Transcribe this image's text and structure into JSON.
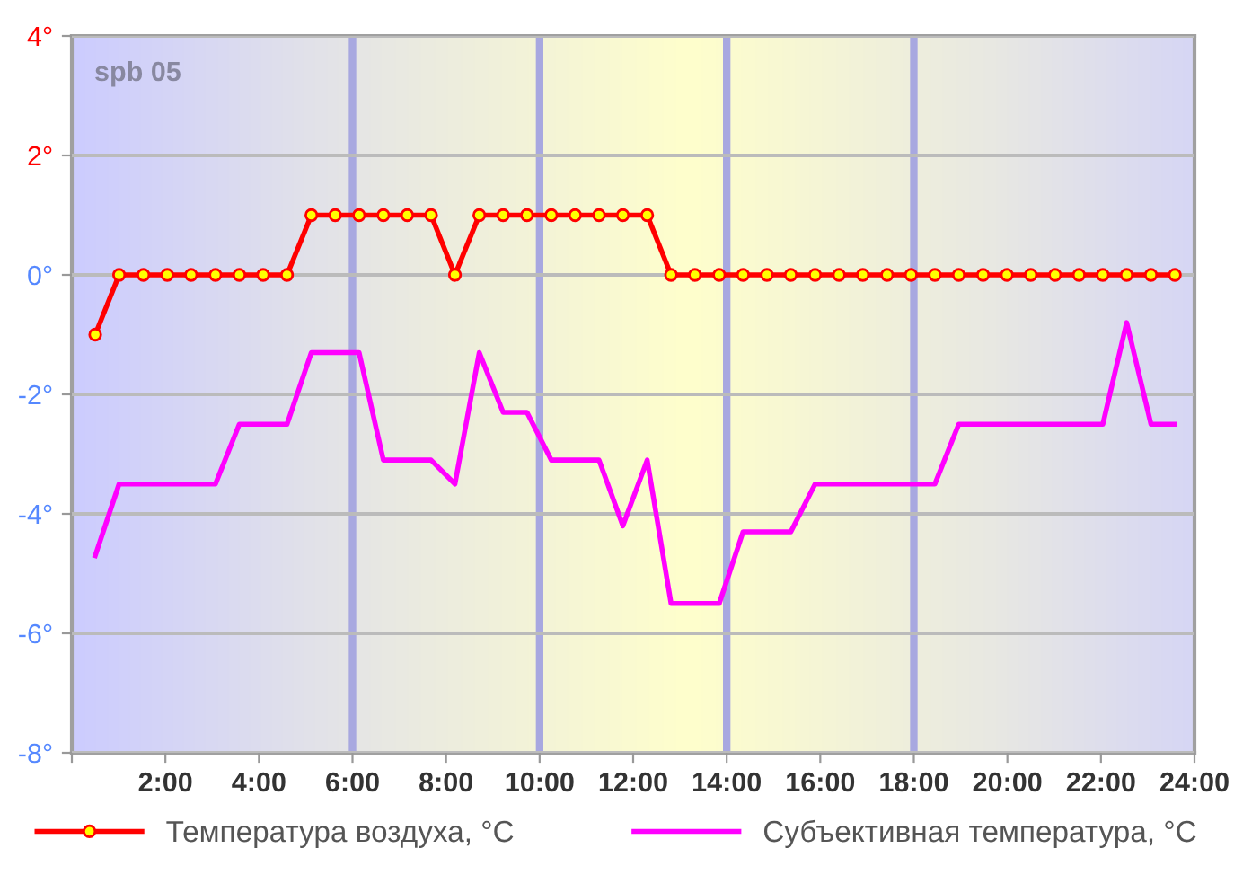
{
  "chart_data": {
    "type": "line",
    "annotations": [
      "spb 05"
    ],
    "x": [
      0.5,
      1.01,
      1.53,
      2.04,
      2.55,
      3.07,
      3.58,
      4.09,
      4.6,
      5.12,
      5.63,
      6.14,
      6.66,
      7.17,
      7.68,
      8.19,
      8.71,
      9.22,
      9.73,
      10.25,
      10.76,
      11.27,
      11.78,
      12.3,
      12.81,
      13.32,
      13.84,
      14.35,
      14.86,
      15.37,
      15.89,
      16.4,
      16.91,
      17.43,
      17.94,
      18.45,
      18.96,
      19.48,
      19.99,
      20.5,
      21.02,
      21.53,
      22.04,
      22.55,
      23.07,
      23.58
    ],
    "series": [
      {
        "name": "Температура воздуха, °C",
        "color": "#ff0000",
        "marker": "circle",
        "values": [
          -1,
          0,
          0,
          0,
          0,
          0,
          0,
          0,
          0,
          1,
          1,
          1,
          1,
          1,
          1,
          0,
          1,
          1,
          1,
          1,
          1,
          1,
          1,
          1,
          0,
          0,
          0,
          0,
          0,
          0,
          0,
          0,
          0,
          0,
          0,
          0,
          0,
          0,
          0,
          0,
          0,
          0,
          0,
          0,
          0,
          0
        ]
      },
      {
        "name": "Субъективная температура, °C",
        "color": "#ff00ff",
        "values": [
          -4.7,
          -3.5,
          -3.5,
          -3.5,
          -3.5,
          -3.5,
          -2.5,
          -2.5,
          -2.5,
          -1.3,
          -1.3,
          -1.3,
          -3.1,
          -3.1,
          -3.1,
          -3.5,
          -1.3,
          -2.3,
          -2.3,
          -3.1,
          -3.1,
          -3.1,
          -4.2,
          -3.1,
          -5.5,
          -5.5,
          -5.5,
          -4.3,
          -4.3,
          -4.3,
          -3.5,
          -3.5,
          -3.5,
          -3.5,
          -3.5,
          -3.5,
          -2.5,
          -2.5,
          -2.5,
          -2.5,
          -2.5,
          -2.5,
          -2.5,
          -0.8,
          -2.5,
          -2.5
        ]
      }
    ],
    "xlim": [
      0,
      24
    ],
    "xticks": [
      {
        "value": 0,
        "label": null
      },
      {
        "value": 2,
        "label": "2:00"
      },
      {
        "value": 4,
        "label": "4:00"
      },
      {
        "value": 6,
        "label": "6:00"
      },
      {
        "value": 8,
        "label": "8:00"
      },
      {
        "value": 10,
        "label": "10:00"
      },
      {
        "value": 12,
        "label": "12:00"
      },
      {
        "value": 14,
        "label": "14:00"
      },
      {
        "value": 16,
        "label": "16:00"
      },
      {
        "value": 18,
        "label": "18:00"
      },
      {
        "value": 20,
        "label": "20:00"
      },
      {
        "value": 22,
        "label": "22:00"
      },
      {
        "value": 24,
        "label": "24:00"
      }
    ],
    "ylim": [
      -8,
      4
    ],
    "yticks": [
      {
        "value": -8,
        "label": "-8°"
      },
      {
        "value": -6,
        "label": "-6°"
      },
      {
        "value": -4,
        "label": "-4°"
      },
      {
        "value": -2,
        "label": "-2°"
      },
      {
        "value": 0,
        "label": "0°"
      },
      {
        "value": 2,
        "label": "2°"
      },
      {
        "value": 4,
        "label": "4°"
      }
    ],
    "ref_lines": [
      {
        "axis": "x",
        "value": 6,
        "color": "#a8a8e0"
      },
      {
        "axis": "x",
        "value": 10,
        "color": "#a8a8e0"
      },
      {
        "axis": "x",
        "value": 14,
        "color": "#a8a8e0"
      },
      {
        "axis": "x",
        "value": 18,
        "color": "#a8a8e0"
      }
    ],
    "grid": "y",
    "legend": "bottom"
  }
}
